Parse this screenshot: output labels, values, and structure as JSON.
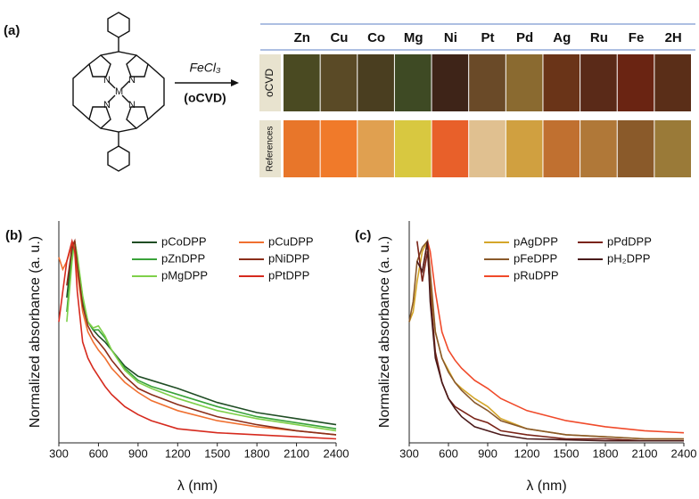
{
  "panel_a": {
    "label": "(a)",
    "atoms": [
      "N",
      "N",
      "N",
      "N",
      "M"
    ],
    "reagent": "FeCl₃",
    "method": "(oCVD)",
    "columns": [
      "Zn",
      "Cu",
      "Co",
      "Mg",
      "Ni",
      "Pt",
      "Pd",
      "Ag",
      "Ru",
      "Fe",
      "2H"
    ],
    "rows": [
      {
        "label": "oCVD",
        "colors": [
          "#4a4a22",
          "#5a4a26",
          "#4a3e20",
          "#3e4a24",
          "#3e2418",
          "#6a4a28",
          "#8a6a30",
          "#6a3418",
          "#5a2a18",
          "#6a2412",
          "#5a2e18"
        ]
      },
      {
        "label": "References",
        "colors": [
          "#e8762a",
          "#f07a2a",
          "#e0a050",
          "#d8c840",
          "#e8602a",
          "#e0c090",
          "#d0a040",
          "#c07030",
          "#b07838",
          "#8a5a2a",
          "#9a7a38"
        ]
      }
    ]
  },
  "chart_data": [
    {
      "type": "line",
      "panel_label": "(b)",
      "xlabel": "λ (nm)",
      "ylabel": "Normalized absorbance (a. u.)",
      "x": [
        300,
        330,
        360,
        400,
        420,
        440,
        480,
        520,
        560,
        600,
        650,
        700,
        800,
        900,
        1000,
        1200,
        1500,
        1800,
        2100,
        2400
      ],
      "xlim": [
        300,
        2400
      ],
      "xticks": [
        300,
        600,
        900,
        1200,
        1500,
        1800,
        2100,
        2400
      ],
      "ylim": [
        0,
        1.1
      ],
      "series": [
        {
          "name": "pCoDPP",
          "color": "#1f4d24",
          "values": [
            null,
            null,
            0.72,
            0.95,
            1.0,
            0.9,
            0.7,
            0.6,
            0.56,
            0.53,
            0.5,
            0.46,
            0.38,
            0.33,
            0.31,
            0.27,
            0.2,
            0.15,
            0.12,
            0.09
          ]
        },
        {
          "name": "pZnDPP",
          "color": "#3aa33a",
          "values": [
            null,
            null,
            0.65,
            0.92,
            1.0,
            0.92,
            0.72,
            0.6,
            0.56,
            0.56,
            0.52,
            0.46,
            0.37,
            0.31,
            0.28,
            0.24,
            0.18,
            0.13,
            0.1,
            0.07
          ]
        },
        {
          "name": "pMgDPP",
          "color": "#7fd04a",
          "values": [
            null,
            null,
            0.6,
            0.9,
            1.0,
            0.93,
            0.73,
            0.6,
            0.57,
            0.58,
            0.53,
            0.46,
            0.36,
            0.3,
            0.27,
            0.22,
            0.16,
            0.12,
            0.09,
            0.06
          ]
        },
        {
          "name": "pCuDPP",
          "color": "#f07030",
          "values": [
            0.92,
            0.86,
            0.9,
            0.98,
            1.0,
            0.85,
            0.65,
            0.55,
            0.5,
            0.46,
            0.42,
            0.37,
            0.3,
            0.25,
            0.21,
            0.16,
            0.11,
            0.08,
            0.06,
            0.04
          ]
        },
        {
          "name": "pNiDPP",
          "color": "#8b2e1a",
          "values": [
            null,
            null,
            0.78,
            0.97,
            1.0,
            0.88,
            0.68,
            0.58,
            0.53,
            0.5,
            0.46,
            0.41,
            0.33,
            0.27,
            0.24,
            0.19,
            0.13,
            0.09,
            0.06,
            0.04
          ]
        },
        {
          "name": "pPtDPP",
          "color": "#d62a1e",
          "values": [
            0.6,
            0.75,
            0.9,
            1.0,
            0.95,
            0.75,
            0.5,
            0.42,
            0.37,
            0.33,
            0.28,
            0.24,
            0.18,
            0.14,
            0.11,
            0.07,
            0.05,
            0.04,
            0.03,
            0.02
          ]
        }
      ]
    },
    {
      "type": "line",
      "panel_label": "(c)",
      "xlabel": "λ (nm)",
      "ylabel": "Normalized absorbance (a. u.)",
      "x": [
        300,
        330,
        360,
        400,
        440,
        460,
        500,
        550,
        600,
        650,
        700,
        800,
        900,
        1000,
        1200,
        1500,
        1800,
        2100,
        2400
      ],
      "xlim": [
        300,
        2400
      ],
      "xticks": [
        300,
        600,
        900,
        1200,
        1500,
        1800,
        2100,
        2400
      ],
      "ylim": [
        0,
        1.1
      ],
      "series": [
        {
          "name": "pAgDPP",
          "color": "#d4a62a",
          "values": [
            0.6,
            0.65,
            0.8,
            0.95,
            1.0,
            0.8,
            0.55,
            0.42,
            0.36,
            0.3,
            0.27,
            0.22,
            0.18,
            0.12,
            0.07,
            0.04,
            0.03,
            0.02,
            0.02
          ]
        },
        {
          "name": "pFeDPP",
          "color": "#8a5a2b",
          "values": [
            0.6,
            0.7,
            0.9,
            0.97,
            1.0,
            0.85,
            0.55,
            0.42,
            0.35,
            0.3,
            0.26,
            0.2,
            0.16,
            0.11,
            0.07,
            0.04,
            0.03,
            0.02,
            0.02
          ]
        },
        {
          "name": "pRuDPP",
          "color": "#f04a2a",
          "values": [
            null,
            null,
            null,
            0.85,
            1.0,
            0.95,
            0.75,
            0.55,
            0.46,
            0.41,
            0.37,
            0.31,
            0.27,
            0.22,
            0.16,
            0.11,
            0.08,
            0.06,
            0.05
          ]
        },
        {
          "name": "pPdDPP",
          "color": "#7a2418",
          "values": [
            null,
            null,
            1.0,
            0.8,
            0.95,
            0.75,
            0.45,
            0.3,
            0.22,
            0.18,
            0.16,
            0.12,
            0.1,
            0.06,
            0.04,
            0.02,
            0.02,
            0.01,
            0.01
          ]
        },
        {
          "name": "pH₂DPP",
          "color": "#4a1a1a",
          "values": [
            null,
            null,
            0.9,
            0.85,
            1.0,
            0.7,
            0.42,
            0.3,
            0.22,
            0.17,
            0.13,
            0.08,
            0.06,
            0.04,
            0.02,
            0.015,
            0.01,
            0.01,
            0.01
          ]
        }
      ]
    }
  ]
}
